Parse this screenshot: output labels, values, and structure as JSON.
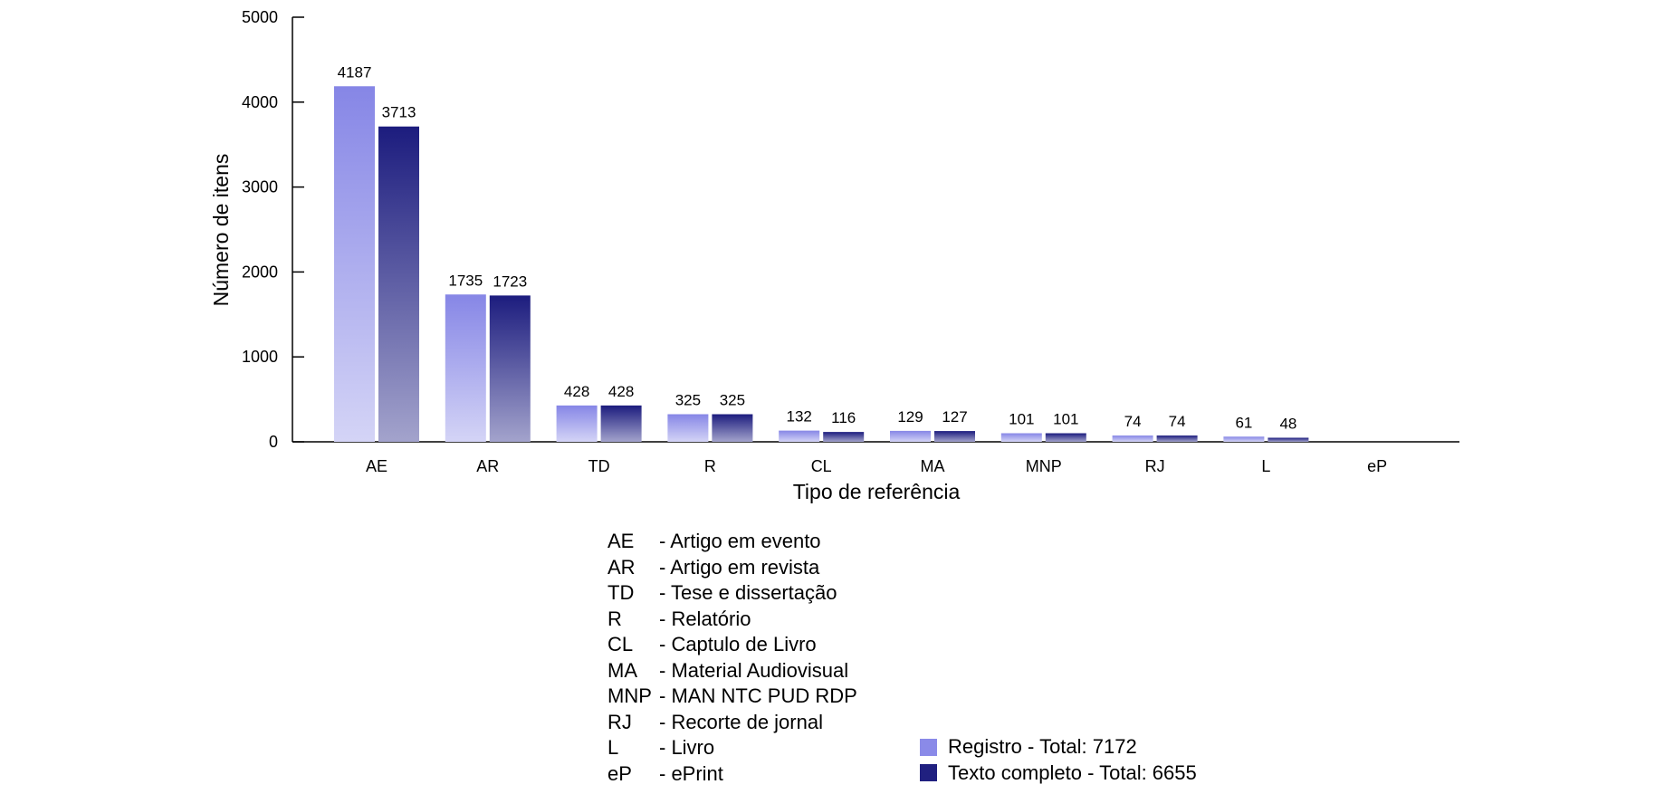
{
  "chart_data": {
    "type": "bar",
    "title": "",
    "xlabel": "Tipo de referência",
    "ylabel": "Número de itens",
    "ylim": [
      0,
      5000
    ],
    "yticks": [
      0,
      1000,
      2000,
      3000,
      4000,
      5000
    ],
    "categories": [
      "AE",
      "AR",
      "TD",
      "R",
      "CL",
      "MA",
      "MNP",
      "RJ",
      "L",
      "eP"
    ],
    "series": [
      {
        "name": "Registro - Total: 7172",
        "color": "#8a8ae8",
        "values": [
          4187,
          1735,
          428,
          325,
          132,
          129,
          101,
          74,
          61,
          0
        ]
      },
      {
        "name": "Texto completo - Total: 6655",
        "color": "#202080",
        "values": [
          3713,
          1723,
          428,
          325,
          116,
          127,
          101,
          74,
          48,
          0
        ]
      }
    ],
    "data_labels": [
      [
        "4187",
        "1735",
        "428",
        "325",
        "132",
        "129",
        "101",
        "74",
        "61",
        ""
      ],
      [
        "3713",
        "1723",
        "428",
        "325",
        "116",
        "127",
        "101",
        "74",
        "48",
        ""
      ]
    ],
    "legend_position": "bottom-right",
    "grid": false
  },
  "abbreviations": [
    {
      "code": "AE",
      "desc": "- Artigo em evento"
    },
    {
      "code": "AR",
      "desc": "- Artigo em revista"
    },
    {
      "code": "TD",
      "desc": "- Tese e dissertação"
    },
    {
      "code": "R",
      "desc": "- Relatório"
    },
    {
      "code": "CL",
      "desc": "- Captulo de Livro"
    },
    {
      "code": "MA",
      "desc": "- Material Audiovisual"
    },
    {
      "code": "MNP",
      "desc": "- MAN NTC PUD RDP"
    },
    {
      "code": "RJ",
      "desc": "- Recorte de jornal"
    },
    {
      "code": "L",
      "desc": "- Livro"
    },
    {
      "code": "eP",
      "desc": "- ePrint"
    }
  ],
  "legend": [
    {
      "label": "Registro - Total: 7172",
      "color": "#8a8ae8"
    },
    {
      "label": "Texto completo - Total: 6655",
      "color": "#202080"
    }
  ]
}
